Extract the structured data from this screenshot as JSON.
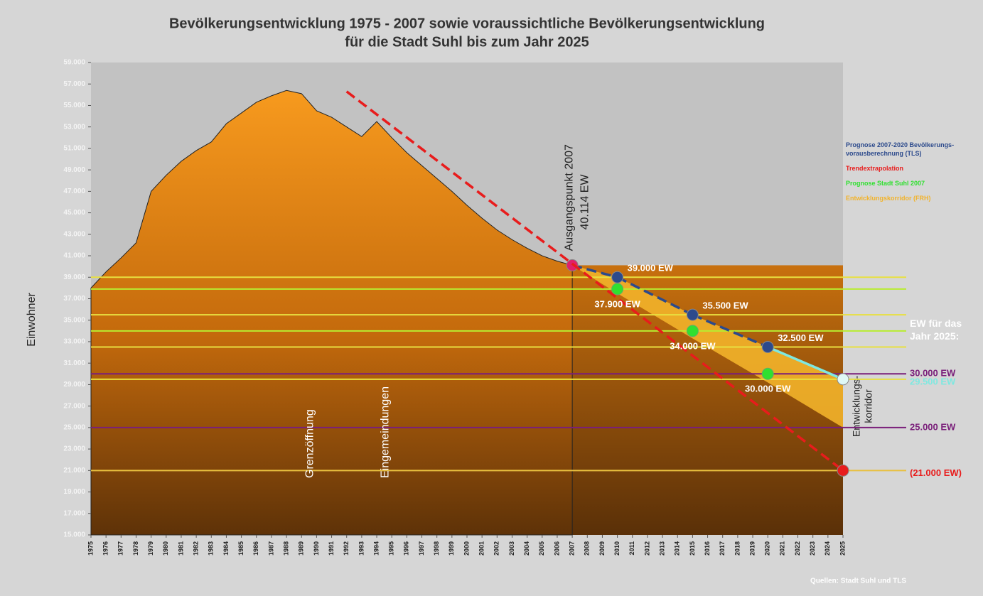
{
  "chart_data": {
    "type": "area",
    "title": [
      "Bevölkerungsentwicklung 1975 - 2007 sowie voraussichtliche Bevölkerungsentwicklung",
      "für die Stadt Suhl bis zum Jahr 2025"
    ],
    "ylabel": "Einwohner",
    "source": "Quellen: Stadt Suhl und TLS",
    "right_heading": "EW für das Jahr 2025:",
    "legend_position": "right",
    "xlim": [
      1975,
      2025
    ],
    "xticks": [
      1975,
      1976,
      1977,
      1978,
      1979,
      1980,
      1981,
      1982,
      1983,
      1984,
      1985,
      1986,
      1987,
      1988,
      1989,
      1990,
      1991,
      1992,
      1993,
      1994,
      1995,
      1996,
      1997,
      1998,
      1999,
      2000,
      2001,
      2002,
      2003,
      2004,
      2005,
      2006,
      2007,
      2008,
      2009,
      2010,
      2011,
      2012,
      2013,
      2014,
      2015,
      2016,
      2017,
      2018,
      2019,
      2020,
      2021,
      2022,
      2023,
      2024,
      2025
    ],
    "ylim": [
      15000,
      59000
    ],
    "yticks": [
      {
        "value": 15000,
        "label": "15.000"
      },
      {
        "value": 17000,
        "label": "17.000"
      },
      {
        "value": 19000,
        "label": "19.000"
      },
      {
        "value": 21000,
        "label": "21.000"
      },
      {
        "value": 23000,
        "label": "23.000"
      },
      {
        "value": 25000,
        "label": "25.000"
      },
      {
        "value": 27000,
        "label": "27.000"
      },
      {
        "value": 29000,
        "label": "29.000"
      },
      {
        "value": 31000,
        "label": "31.000"
      },
      {
        "value": 33000,
        "label": "33.000"
      },
      {
        "value": 35000,
        "label": "35.000"
      },
      {
        "value": 37000,
        "label": "37.000"
      },
      {
        "value": 39000,
        "label": "39.000"
      },
      {
        "value": 41000,
        "label": "41.000"
      },
      {
        "value": 43000,
        "label": "43.000"
      },
      {
        "value": 45000,
        "label": "45.000"
      },
      {
        "value": 47000,
        "label": "47.000"
      },
      {
        "value": 49000,
        "label": "49.000"
      },
      {
        "value": 51000,
        "label": "51.000"
      },
      {
        "value": 53000,
        "label": "53.000"
      },
      {
        "value": 55000,
        "label": "55.000"
      },
      {
        "value": 57000,
        "label": "57.000"
      },
      {
        "value": 59000,
        "label": "59.000"
      }
    ],
    "history": {
      "color": "#f0951c",
      "x": [
        1975,
        1976,
        1977,
        1978,
        1979,
        1980,
        1981,
        1982,
        1983,
        1984,
        1985,
        1986,
        1987,
        1988,
        1989,
        1990,
        1991,
        1992,
        1993,
        1994,
        1995,
        1996,
        1997,
        1998,
        1999,
        2000,
        2001,
        2002,
        2003,
        2004,
        2005,
        2006,
        2007
      ],
      "values": [
        38000,
        39500,
        40800,
        42200,
        47000,
        48500,
        49800,
        50800,
        51600,
        53300,
        54300,
        55300,
        55900,
        56400,
        56100,
        54500,
        53900,
        53000,
        52100,
        53500,
        52000,
        50600,
        49400,
        48200,
        47000,
        45700,
        44500,
        43400,
        42500,
        41700,
        41000,
        40500,
        40114
      ]
    },
    "series": [
      {
        "name": "Prognose 2007-2020 Bevölkerungs-vorausberechnung (TLS)",
        "style": "dashed",
        "color": "#2c4a8c",
        "last_color": "#7fe8e0",
        "start_color": "#e0206a",
        "x": [
          2007,
          2010,
          2015,
          2020,
          2025
        ],
        "values": [
          40114,
          39000,
          35500,
          32500,
          29500
        ],
        "value_labels": [
          "40.114 EW",
          "39.000 EW",
          "35.500 EW",
          "32.500 EW",
          "29.500 EW"
        ]
      },
      {
        "name": "Trendextrapolation",
        "style": "dashed",
        "color": "#e81c1c",
        "x": [
          1992,
          2025
        ],
        "values": [
          56300,
          21000
        ],
        "value_labels": [
          null,
          "(21.000 EW)"
        ]
      },
      {
        "name": "Prognose Stadt Suhl 2007",
        "style": "points",
        "color": "#30e030",
        "x": [
          2010,
          2015,
          2020
        ],
        "values": [
          37900,
          34000,
          30000
        ],
        "value_labels": [
          "37.900 EW",
          "34.000 EW",
          "30.000 EW"
        ]
      },
      {
        "name": "Entwicklungskorridor (FRH)",
        "style": "band",
        "color": "#f2b32a",
        "label": [
          "Entwicklungs-",
          "korridor"
        ],
        "x": [
          2007,
          2010,
          2015,
          2020,
          2025
        ],
        "values": [
          40114,
          37500,
          33300,
          29200,
          25000
        ]
      }
    ],
    "reference_lines": [
      {
        "value": 39000,
        "color": "#e8e040"
      },
      {
        "value": 37900,
        "color": "#b8ec30"
      },
      {
        "value": 35500,
        "color": "#e8e040"
      },
      {
        "value": 34000,
        "color": "#b8ec30"
      },
      {
        "value": 32500,
        "color": "#e8e040"
      },
      {
        "value": 30000,
        "color": "#7a1f7a",
        "label": "30.000 EW"
      },
      {
        "value": 29500,
        "color": "#e8e040"
      },
      {
        "value": 25000,
        "color": "#7a1f7a",
        "label": "25.000 EW"
      },
      {
        "value": 21000,
        "color": "#e8c040"
      }
    ],
    "annotations": [
      {
        "text": "Ausgangspunkt 2007",
        "x": 2007
      },
      {
        "text": "Grenzöffnung",
        "x": 1989
      },
      {
        "text": "Eingemeindungen",
        "x": 1994
      }
    ]
  }
}
